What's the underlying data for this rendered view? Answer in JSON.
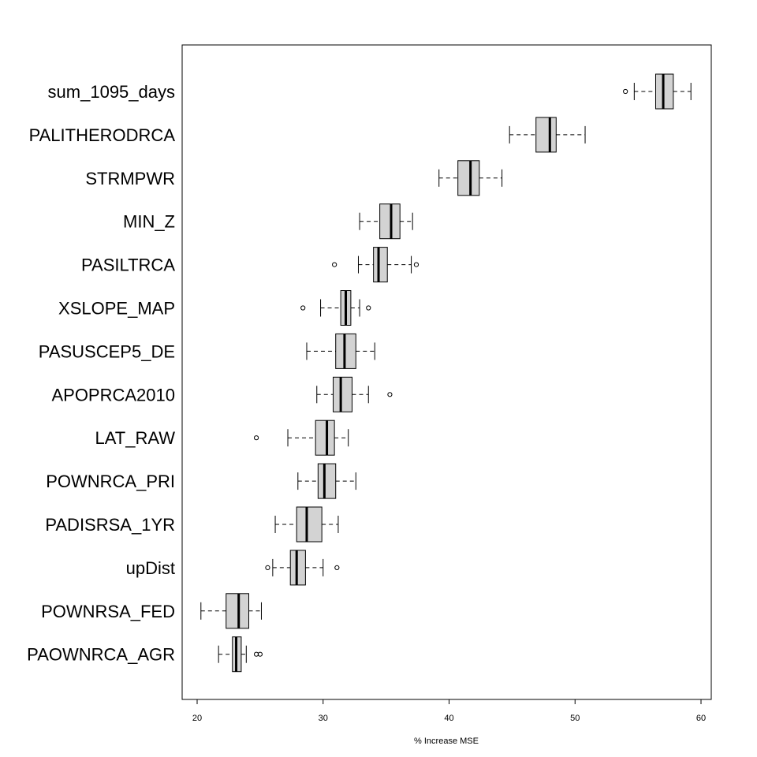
{
  "chart_data": {
    "type": "boxplot",
    "orientation": "horizontal",
    "title": "",
    "xlabel": "% Increase MSE",
    "ylabel": "",
    "xlim": [
      19,
      61
    ],
    "xticks": [
      20,
      30,
      40,
      50,
      60
    ],
    "grid": false,
    "legend": "none",
    "colors": {
      "box_fill": "#d3d3d3",
      "stroke": "#000000",
      "background": "#ffffff"
    },
    "series": [
      {
        "name": "sum_1095_days",
        "whisker_low": 54.7,
        "q1": 56.4,
        "median": 57.0,
        "q3": 57.8,
        "whisker_high": 59.2,
        "outliers": [
          54.0
        ]
      },
      {
        "name": "PALITHERODRCA",
        "whisker_low": 44.8,
        "q1": 46.9,
        "median": 48.0,
        "q3": 48.5,
        "whisker_high": 50.8,
        "outliers": []
      },
      {
        "name": "STRMPWR",
        "whisker_low": 39.2,
        "q1": 40.7,
        "median": 41.7,
        "q3": 42.4,
        "whisker_high": 44.2,
        "outliers": []
      },
      {
        "name": "MIN_Z",
        "whisker_low": 32.9,
        "q1": 34.5,
        "median": 35.4,
        "q3": 36.1,
        "whisker_high": 37.1,
        "outliers": []
      },
      {
        "name": "PASILTRCA",
        "whisker_low": 32.8,
        "q1": 34.0,
        "median": 34.4,
        "q3": 35.1,
        "whisker_high": 37.0,
        "outliers": [
          30.9,
          37.4
        ]
      },
      {
        "name": "XSLOPE_MAP",
        "whisker_low": 29.8,
        "q1": 31.4,
        "median": 31.8,
        "q3": 32.2,
        "whisker_high": 32.9,
        "outliers": [
          28.4,
          33.6
        ]
      },
      {
        "name": "PASUSCEP5_DE",
        "whisker_low": 28.7,
        "q1": 31.0,
        "median": 31.7,
        "q3": 32.6,
        "whisker_high": 34.1,
        "outliers": []
      },
      {
        "name": "APOPRCA2010",
        "whisker_low": 29.5,
        "q1": 30.8,
        "median": 31.4,
        "q3": 32.3,
        "whisker_high": 33.6,
        "outliers": [
          35.3
        ]
      },
      {
        "name": "LAT_RAW",
        "whisker_low": 27.2,
        "q1": 29.4,
        "median": 30.3,
        "q3": 30.9,
        "whisker_high": 32.0,
        "outliers": [
          24.7
        ]
      },
      {
        "name": "POWNRCA_PRI",
        "whisker_low": 28.0,
        "q1": 29.6,
        "median": 30.1,
        "q3": 31.0,
        "whisker_high": 32.6,
        "outliers": []
      },
      {
        "name": "PADISRSA_1YR",
        "whisker_low": 26.2,
        "q1": 27.9,
        "median": 28.7,
        "q3": 29.9,
        "whisker_high": 31.2,
        "outliers": []
      },
      {
        "name": "upDist",
        "whisker_low": 26.0,
        "q1": 27.4,
        "median": 27.9,
        "q3": 28.6,
        "whisker_high": 30.0,
        "outliers": [
          25.6,
          31.1
        ]
      },
      {
        "name": "POWNRSA_FED",
        "whisker_low": 20.3,
        "q1": 22.3,
        "median": 23.3,
        "q3": 24.1,
        "whisker_high": 25.1,
        "outliers": []
      },
      {
        "name": "PAOWNRCA_AGR",
        "whisker_low": 21.7,
        "q1": 22.8,
        "median": 23.1,
        "q3": 23.5,
        "whisker_high": 23.9,
        "outliers": [
          24.7,
          25.0
        ]
      }
    ]
  }
}
